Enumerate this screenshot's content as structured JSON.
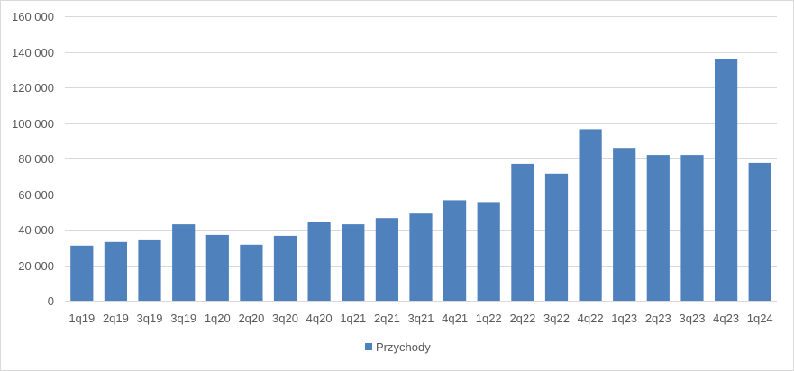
{
  "chart_data": {
    "type": "bar",
    "categories": [
      "1q19",
      "2q19",
      "3q19",
      "3q19",
      "1q20",
      "2q20",
      "3q20",
      "4q20",
      "1q21",
      "2q21",
      "3q21",
      "4q21",
      "1q22",
      "2q22",
      "3q22",
      "4q22",
      "1q23",
      "2q23",
      "3q23",
      "4q23",
      "1q24"
    ],
    "series": [
      {
        "name": "Przychody",
        "values": [
          31000,
          33000,
          34500,
          43000,
          37000,
          31500,
          36500,
          44500,
          43000,
          46500,
          49000,
          56500,
          55500,
          77000,
          71500,
          96500,
          86000,
          82000,
          82000,
          136000,
          77500
        ]
      }
    ],
    "ylim": [
      0,
      160000
    ],
    "yticks": [
      0,
      20000,
      40000,
      60000,
      80000,
      100000,
      120000,
      140000,
      160000
    ],
    "ytick_labels": [
      "0",
      "20 000",
      "40 000",
      "60 000",
      "80 000",
      "100 000",
      "120 000",
      "140 000",
      "160 000"
    ],
    "grid": true,
    "legend_position": "bottom",
    "bar_color": "#4f81bd",
    "title": "",
    "xlabel": "",
    "ylabel": ""
  }
}
